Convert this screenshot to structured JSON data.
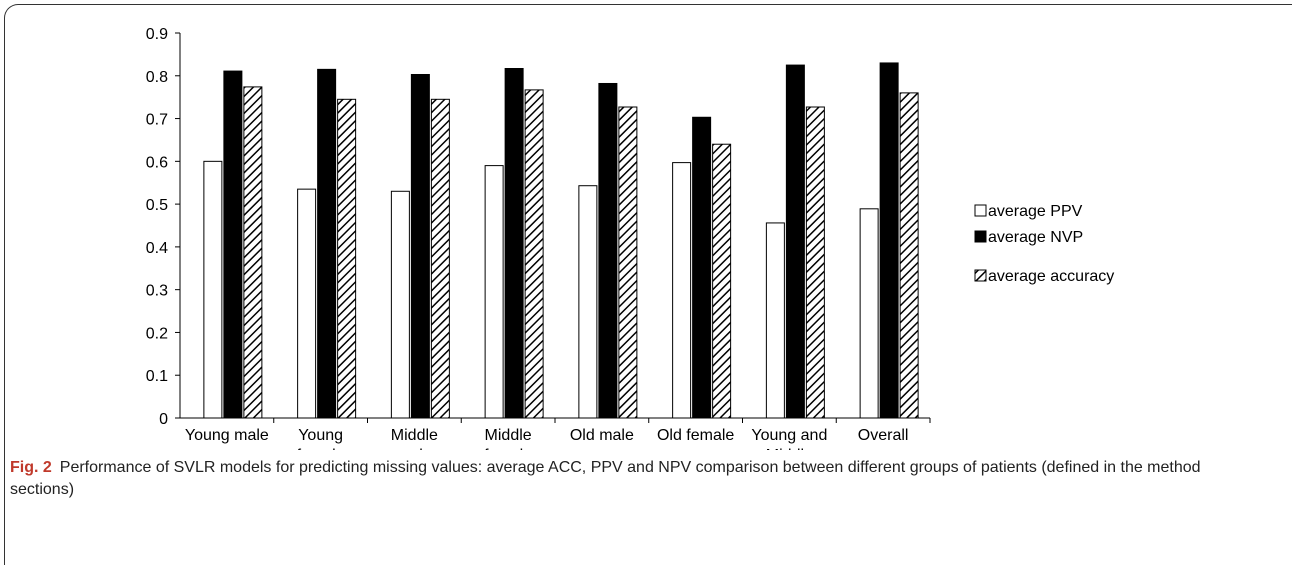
{
  "chart_data": {
    "type": "bar",
    "categories": [
      "Young male",
      "Young\nfemale",
      "Middle\nmale",
      "Middle\nfemale",
      "Old male",
      "Old female",
      "Young and\nMiddle",
      "Overall"
    ],
    "series": [
      {
        "name": "average PPV",
        "color": "#ffffff",
        "values": [
          0.6,
          0.535,
          0.53,
          0.59,
          0.543,
          0.597,
          0.456,
          0.489
        ]
      },
      {
        "name": "average NVP",
        "color": "#000000",
        "values": [
          0.811,
          0.815,
          0.803,
          0.817,
          0.782,
          0.703,
          0.825,
          0.83
        ]
      },
      {
        "name": "average accuracy",
        "color": "#000000",
        "pattern": "diagonal-hatch",
        "values": [
          0.774,
          0.745,
          0.745,
          0.767,
          0.727,
          0.64,
          0.727,
          0.76
        ]
      }
    ],
    "ylim": [
      0,
      0.9
    ],
    "yticks": [
      0,
      0.1,
      0.2,
      0.3,
      0.4,
      0.5,
      0.6,
      0.7,
      0.8,
      0.9
    ],
    "grid": false,
    "legend": "right"
  },
  "caption": {
    "label": "Fig. 2",
    "text": "Performance of SVLR models for predicting missing values: average ACC, PPV and NPV comparison between different groups of patients (defined in the method sections)"
  }
}
